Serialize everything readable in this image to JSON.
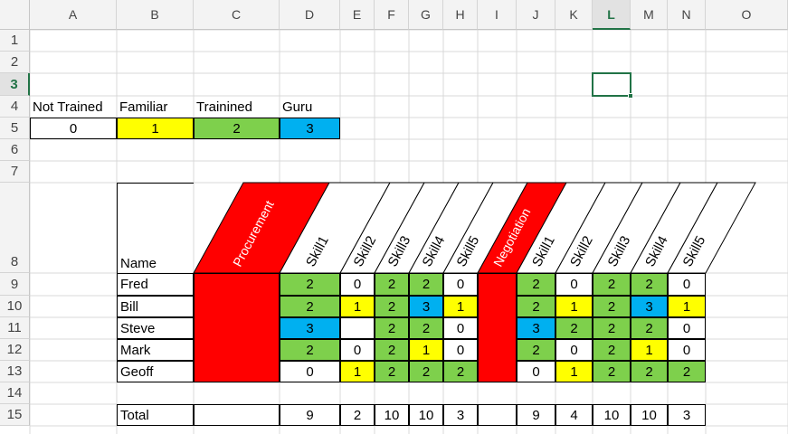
{
  "columns": [
    "A",
    "B",
    "C",
    "D",
    "E",
    "F",
    "G",
    "H",
    "I",
    "J",
    "K",
    "L",
    "M",
    "N",
    "O"
  ],
  "rows": [
    "1",
    "2",
    "3",
    "4",
    "5",
    "6",
    "7",
    "8",
    "9",
    "10",
    "11",
    "12",
    "13",
    "14",
    "15"
  ],
  "active_cell": "L3",
  "legend": {
    "labels": [
      "Not Trained",
      "Familiar",
      "Trainined",
      "Guru"
    ],
    "values": [
      "0",
      "1",
      "2",
      "3"
    ]
  },
  "table": {
    "name_header": "Name",
    "group_headers": [
      "Procurement",
      "Negotiation"
    ],
    "skill_headers": [
      "Skill1",
      "Skill2",
      "Skill3",
      "Skill4",
      "Skill5",
      "Skill1",
      "Skill2",
      "Skill3",
      "Skill4",
      "Skill5"
    ],
    "names": [
      "Fred",
      "Bill",
      "Steve",
      "Mark",
      "Geoff"
    ],
    "scores": [
      [
        "2",
        "0",
        "2",
        "2",
        "0",
        "2",
        "0",
        "2",
        "2",
        "0"
      ],
      [
        "2",
        "1",
        "2",
        "3",
        "1",
        "2",
        "1",
        "2",
        "3",
        "1"
      ],
      [
        "3",
        "",
        "2",
        "2",
        "0",
        "3",
        "2",
        "2",
        "2",
        "0"
      ],
      [
        "2",
        "0",
        "2",
        "1",
        "0",
        "2",
        "0",
        "2",
        "1",
        "0"
      ],
      [
        "0",
        "1",
        "2",
        "2",
        "2",
        "0",
        "1",
        "2",
        "2",
        "2"
      ]
    ],
    "total_label": "Total",
    "totals": [
      "9",
      "2",
      "10",
      "10",
      "3",
      "9",
      "4",
      "10",
      "10",
      "3"
    ]
  },
  "colors": {
    "not_trained": "#ffffff",
    "familiar": "#ffff00",
    "trained": "#7ed04c",
    "guru": "#00b0f0",
    "group_header": "#ff0000",
    "selection": "#217346"
  }
}
